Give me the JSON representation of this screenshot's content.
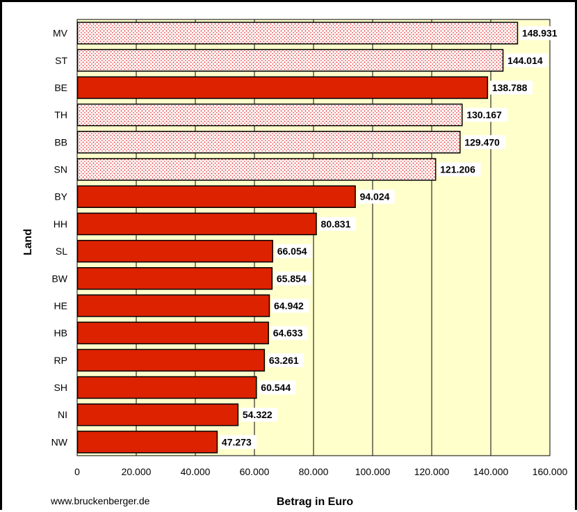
{
  "chart_data": {
    "type": "bar",
    "orientation": "horizontal",
    "categories": [
      "MV",
      "ST",
      "BE",
      "TH",
      "BB",
      "SN",
      "BY",
      "HH",
      "SL",
      "BW",
      "HE",
      "HB",
      "RP",
      "SH",
      "NI",
      "NW"
    ],
    "values": [
      148931,
      144014,
      138788,
      130167,
      129470,
      121206,
      94024,
      80831,
      66054,
      65854,
      64942,
      64633,
      63261,
      60544,
      54322,
      47273
    ],
    "data_labels": [
      "148.931",
      "144.014",
      "138.788",
      "130.167",
      "129.470",
      "121.206",
      "94.024",
      "80.831",
      "66.054",
      "65.854",
      "64.942",
      "64.633",
      "63.261",
      "60.544",
      "54.322",
      "47.273"
    ],
    "patterned": [
      true,
      true,
      false,
      true,
      true,
      true,
      false,
      false,
      false,
      false,
      false,
      false,
      false,
      false,
      false,
      false
    ],
    "xlabel": "Betrag in Euro",
    "ylabel": "Land",
    "xlim": [
      0,
      160000
    ],
    "xticks": [
      "0",
      "20.000",
      "40.000",
      "60.000",
      "80.000",
      "100.000",
      "120.000",
      "140.000",
      "160.000"
    ],
    "grid": true,
    "colors": {
      "solid": "#dd2200",
      "pattern_dot": "#e84040",
      "pattern_bg": "#ffffff",
      "plot_bg": "#ffffcc",
      "grid": "#000000"
    }
  },
  "footer": {
    "source": "www.bruckenberger.de"
  }
}
